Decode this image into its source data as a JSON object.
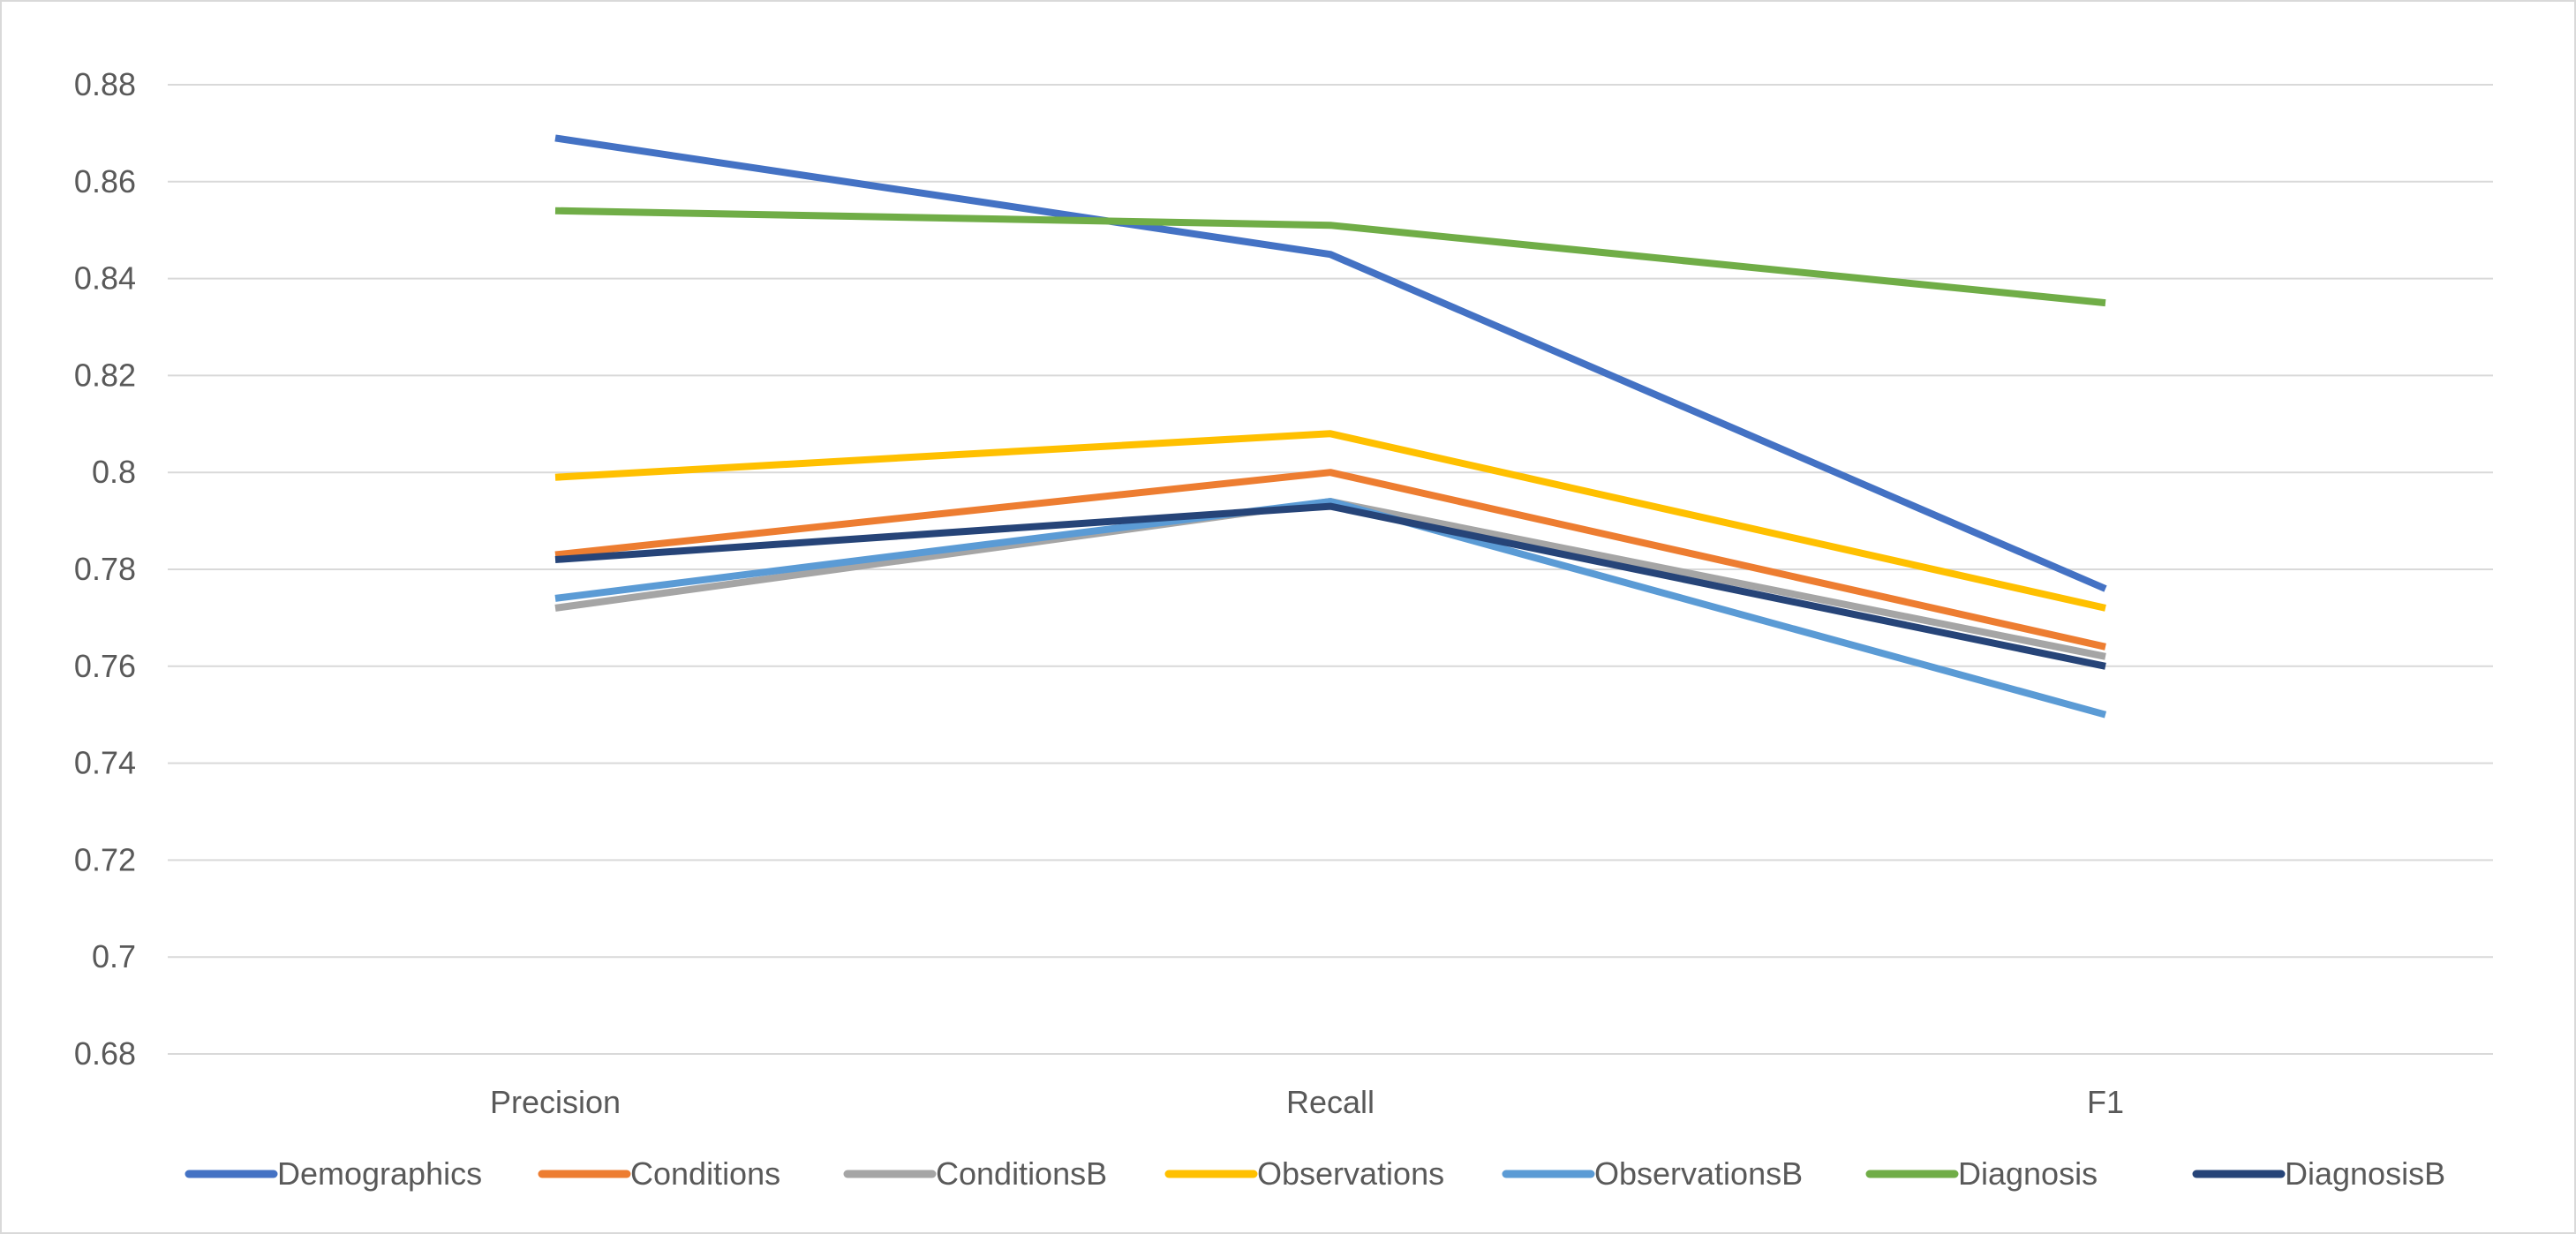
{
  "chart_data": {
    "type": "line",
    "title": "",
    "xlabel": "",
    "ylabel": "",
    "categories": [
      "Precision",
      "Recall",
      "F1"
    ],
    "ylim": [
      0.68,
      0.88
    ],
    "yticks": [
      "0.68",
      "0.7",
      "0.72",
      "0.74",
      "0.76",
      "0.78",
      "0.8",
      "0.82",
      "0.84",
      "0.86",
      "0.88"
    ],
    "grid": true,
    "legend_position": "bottom",
    "series": [
      {
        "name": "Demographics",
        "color": "#4472C4",
        "values": [
          0.869,
          0.845,
          0.776
        ]
      },
      {
        "name": "Conditions",
        "color": "#ED7D31",
        "values": [
          0.783,
          0.8,
          0.764
        ]
      },
      {
        "name": "ConditionsB",
        "color": "#A5A5A5",
        "values": [
          0.772,
          0.794,
          0.762
        ]
      },
      {
        "name": "Observations",
        "color": "#FFC000",
        "values": [
          0.799,
          0.808,
          0.772
        ]
      },
      {
        "name": "ObservationsB",
        "color": "#5B9BD5",
        "values": [
          0.774,
          0.794,
          0.75
        ]
      },
      {
        "name": "Diagnosis",
        "color": "#70AD47",
        "values": [
          0.854,
          0.851,
          0.835
        ]
      },
      {
        "name": "DiagnosisB",
        "color": "#264478",
        "values": [
          0.782,
          0.793,
          0.76
        ]
      }
    ]
  }
}
